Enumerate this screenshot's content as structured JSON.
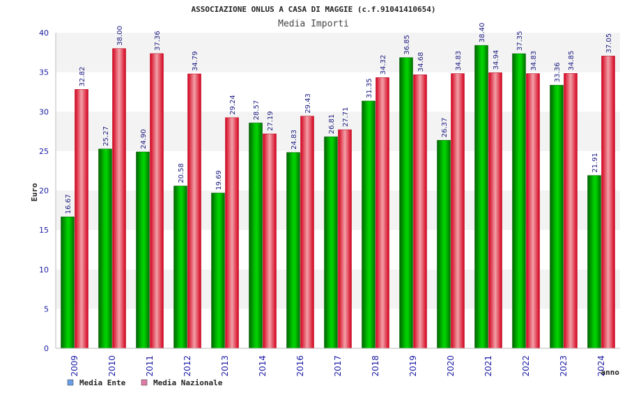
{
  "chart_data": {
    "type": "bar",
    "title": "ASSOCIAZIONE ONLUS A CASA DI MAGGIE (c.f.91041410654)",
    "subtitle": "Media Importi",
    "xlabel": "anno",
    "ylabel": "Euro",
    "ylim": [
      0,
      40
    ],
    "yticks": [
      0,
      5,
      10,
      15,
      20,
      25,
      30,
      35,
      40
    ],
    "grid": "horizontal-bands",
    "legend_position": "bottom-left",
    "categories": [
      "2009",
      "2010",
      "2011",
      "2012",
      "2013",
      "2014",
      "2016",
      "2017",
      "2018",
      "2019",
      "2020",
      "2021",
      "2022",
      "2023",
      "2024"
    ],
    "series": [
      {
        "name": "Media Ente",
        "legend_color": "#6a9ee6",
        "bar_color": "#00aa00",
        "values": [
          16.67,
          25.27,
          24.9,
          20.58,
          19.69,
          28.57,
          24.83,
          26.81,
          31.35,
          36.85,
          26.37,
          38.4,
          37.35,
          33.36,
          21.91
        ],
        "labels": [
          "16.67",
          "25.27",
          "24.90",
          "20.58",
          "19.69",
          "28.57",
          "24.83",
          "26.81",
          "31.35",
          "36.85",
          "26.37",
          "38.40",
          "37.35",
          "33.36",
          "21.91"
        ]
      },
      {
        "name": "Media Nazionale",
        "legend_color": "#e07aa8",
        "bar_color": "#e8102a",
        "values": [
          32.82,
          38.0,
          37.36,
          34.79,
          29.24,
          27.19,
          29.43,
          27.71,
          34.32,
          34.68,
          34.83,
          34.94,
          34.83,
          34.85,
          37.05
        ],
        "labels": [
          "32.82",
          "38.00",
          "37.36",
          "34.79",
          "29.24",
          "27.19",
          "29.43",
          "27.71",
          "34.32",
          "34.68",
          "34.83",
          "34.94",
          "34.83",
          "34.85",
          "37.05"
        ]
      }
    ]
  }
}
